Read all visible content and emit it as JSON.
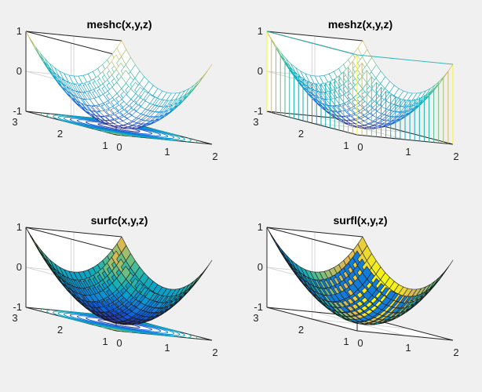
{
  "figure": {
    "background": "#f0f0f0",
    "axes_background": "#ffffff"
  },
  "chart_data": [
    {
      "type": "mesh-contour",
      "title": "meshc(x,y,z)",
      "x": {
        "range": [
          0,
          2
        ],
        "ticks": [
          "0",
          "1",
          "2"
        ]
      },
      "y": {
        "range": [
          1,
          3
        ],
        "ticks": [
          "1",
          "2",
          "3"
        ]
      },
      "z": {
        "range": [
          -1,
          1
        ],
        "ticks": [
          "-1",
          "0",
          "1"
        ]
      },
      "function": "z = (x-1)^2 + (y-2)^2 - 1",
      "grid": true
    },
    {
      "type": "mesh-curtain",
      "title": "meshz(x,y,z)",
      "x": {
        "range": [
          0,
          2
        ],
        "ticks": [
          "0",
          "1",
          "2"
        ]
      },
      "y": {
        "range": [
          1,
          3
        ],
        "ticks": [
          "1",
          "2",
          "3"
        ]
      },
      "z": {
        "range": [
          -1,
          1
        ],
        "ticks": [
          "-1",
          "0",
          "1"
        ]
      },
      "function": "z = (x-1)^2 + (y-2)^2 - 1",
      "grid": true
    },
    {
      "type": "surface-contour",
      "title": "surfc(x,y,z)",
      "x": {
        "range": [
          0,
          2
        ],
        "ticks": [
          "0",
          "1",
          "2"
        ]
      },
      "y": {
        "range": [
          1,
          3
        ],
        "ticks": [
          "1",
          "2",
          "3"
        ]
      },
      "z": {
        "range": [
          -1,
          1
        ],
        "ticks": [
          "-1",
          "0",
          "1"
        ]
      },
      "function": "z = (x-1)^2 + (y-2)^2 - 1",
      "grid": true
    },
    {
      "type": "surface-lit",
      "title": "surfl(x,y,z)",
      "x": {
        "range": [
          0,
          2
        ],
        "ticks": [
          "0",
          "1",
          "2"
        ]
      },
      "y": {
        "range": [
          1,
          3
        ],
        "ticks": [
          "1",
          "2",
          "3"
        ]
      },
      "z": {
        "range": [
          -1,
          1
        ],
        "ticks": [
          "-1",
          "0",
          "1"
        ]
      },
      "function": "z = (x-1)^2 + (y-2)^2 - 1",
      "grid": true
    }
  ]
}
